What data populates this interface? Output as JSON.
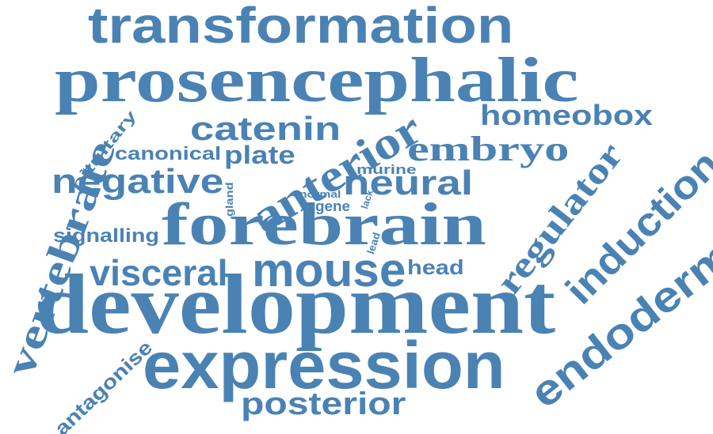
{
  "cloud": {
    "color": "#4a82b4",
    "words": {
      "transformation": "transformation",
      "prosencephalic": "prosencephalic",
      "catenin": "catenin",
      "homeobox": "homeobox",
      "pituitary": "pituitary",
      "canonical": "canonical",
      "plate": "plate",
      "anterior": "anterior",
      "embryo": "embryo",
      "murine": "murine",
      "negative": "negative",
      "neural": "neural",
      "normal": "normal",
      "gland": "gland",
      "gene": "gene",
      "lack": "lack",
      "regulator": "regulator",
      "induction": "induction",
      "vertebrate": "vertebrate",
      "signalling": "signalling",
      "forebrain": "forebrain",
      "lead": "lead",
      "visceral": "visceral",
      "mouse": "mouse",
      "head": "head",
      "endoderm": "endoderm",
      "development": "development",
      "antagonise": "antagonise",
      "expression": "expression",
      "posterior": "posterior"
    }
  }
}
